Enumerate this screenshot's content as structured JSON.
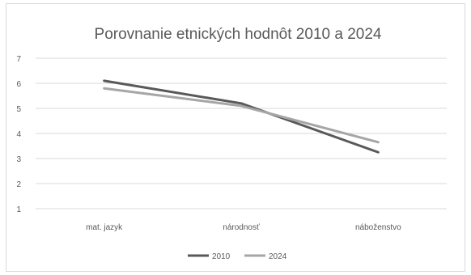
{
  "chart_data": {
    "type": "line",
    "title": "Porovnanie etnických hodnôt 2010 a 2024",
    "categories": [
      "mat. jazyk",
      "národnosť",
      "náboženstvo"
    ],
    "y_ticks": [
      "1",
      "2",
      "3",
      "4",
      "5",
      "6",
      "7"
    ],
    "ylim": [
      1,
      7
    ],
    "grid": true,
    "legend": "bottom",
    "series": [
      {
        "name": "2010",
        "values": [
          6.1,
          5.2,
          3.25
        ],
        "color": "#595959"
      },
      {
        "name": "2024",
        "values": [
          5.8,
          5.1,
          3.65
        ],
        "color": "#a6a6a6"
      }
    ]
  }
}
